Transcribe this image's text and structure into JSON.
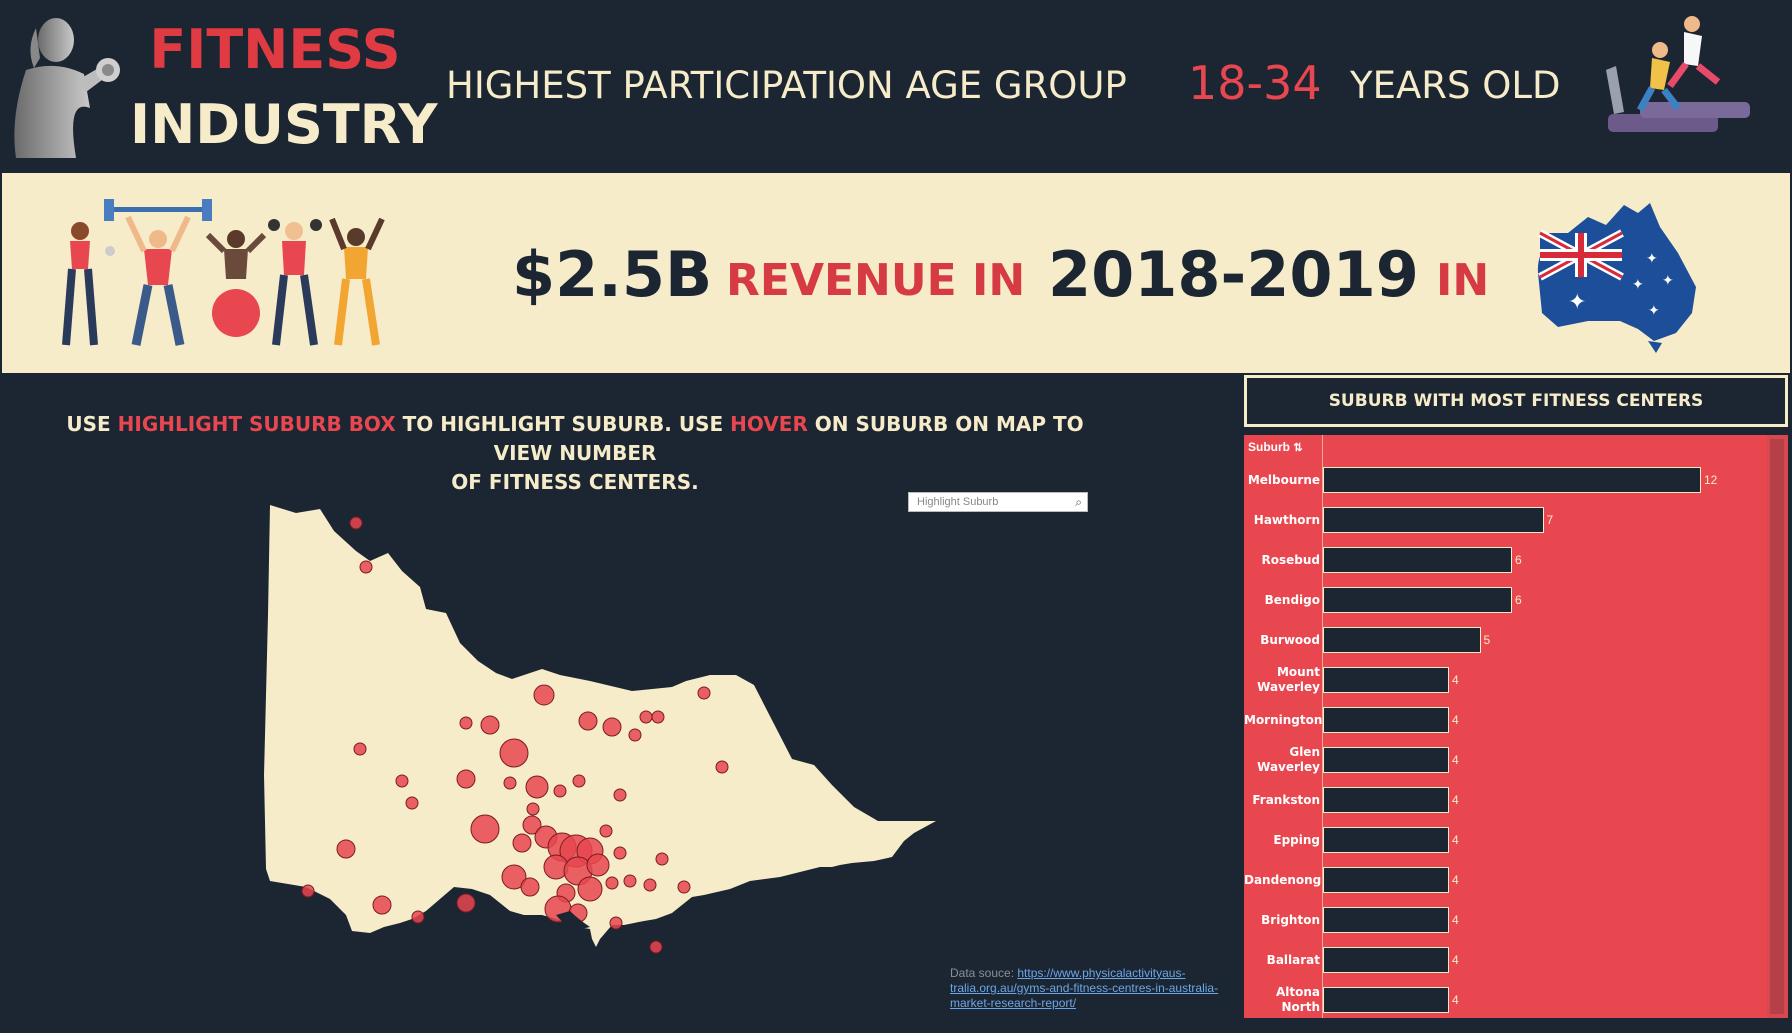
{
  "header": {
    "title_line1": "FITNESS",
    "title_line2": "INDUSTRY",
    "tagline_prefix": "HIGHEST PARTICIPATION AGE GROUP",
    "tagline_highlight": "18-34",
    "tagline_suffix": "YEARS OLD"
  },
  "revenue_band": {
    "amount": "$2.5B",
    "label": "REVENUE IN",
    "years": "2018-2019",
    "in_word": "IN"
  },
  "map_section": {
    "instruction_part1": "USE ",
    "instruction_hl1": "HIGHLIGHT SUBURB BOX",
    "instruction_part2": " TO HIGHLIGHT SUBURB. USE ",
    "instruction_hl2": "HOVER",
    "instruction_part3": " ON SUBURB ON MAP TO VIEW NUMBER",
    "instruction_line2": "OF FITNESS CENTERS.",
    "search_placeholder": "Highlight Suburb",
    "source_label": "Data souce: ",
    "source_link": "https://www.physicalactivityaus-tralia.org.au/gyms-and-fitness-centres-in-australia-market-research-report/"
  },
  "bar_panel": {
    "title": "SUBURB WITH MOST FITNESS CENTERS",
    "column_header": "Suburb"
  },
  "chart_data": {
    "type": "bar",
    "orientation": "horizontal",
    "title": "SUBURB WITH MOST FITNESS CENTERS",
    "categories": [
      "Melbourne",
      "Hawthorn",
      "Rosebud",
      "Bendigo",
      "Burwood",
      "Mount Waverley",
      "Mornington",
      "Glen Waverley",
      "Frankston",
      "Epping",
      "Dandenong",
      "Brighton",
      "Ballarat",
      "Altona North"
    ],
    "values": [
      12,
      7,
      6,
      6,
      5,
      4,
      4,
      4,
      4,
      4,
      4,
      4,
      4,
      4
    ],
    "xlim": [
      0,
      13
    ]
  },
  "colors": {
    "background": "#1c2532",
    "cream": "#f6ecc9",
    "accent_red": "#e8474f"
  }
}
